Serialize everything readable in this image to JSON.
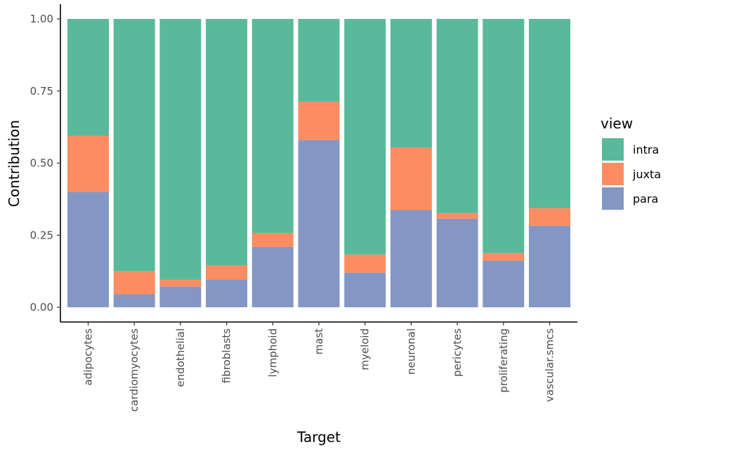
{
  "chart_data": {
    "type": "bar",
    "stacked": true,
    "title": "",
    "xlabel": "Target",
    "ylabel": "Contribution",
    "ylim": [
      0,
      1
    ],
    "y_ticks": [
      "0.00",
      "0.25",
      "0.50",
      "0.75",
      "1.00"
    ],
    "y_tick_values": [
      0,
      0.25,
      0.5,
      0.75,
      1.0
    ],
    "categories": [
      "adipocytes",
      "cardiomyocytes",
      "endothelial",
      "fibroblasts",
      "lymphoid",
      "mast",
      "myeloid",
      "neuronal",
      "pericytes",
      "proliferating",
      "vascular.smcs"
    ],
    "series": [
      {
        "name": "para",
        "color": "#8497C4",
        "values": [
          0.4,
          0.045,
          0.072,
          0.096,
          0.21,
          0.58,
          0.12,
          0.337,
          0.307,
          0.162,
          0.283
        ]
      },
      {
        "name": "juxta",
        "color": "#FC8D62",
        "values": [
          0.195,
          0.08,
          0.023,
          0.05,
          0.048,
          0.133,
          0.063,
          0.216,
          0.02,
          0.026,
          0.061
        ]
      },
      {
        "name": "intra",
        "color": "#5AB99A",
        "values": [
          0.405,
          0.875,
          0.905,
          0.854,
          0.742,
          0.287,
          0.817,
          0.447,
          0.673,
          0.812,
          0.656
        ]
      }
    ],
    "legend": {
      "title": "view",
      "position": "right",
      "entries": [
        {
          "label": "intra",
          "color": "#5AB99A"
        },
        {
          "label": "juxta",
          "color": "#FC8D62"
        },
        {
          "label": "para",
          "color": "#8497C4"
        }
      ]
    },
    "grid": false
  }
}
